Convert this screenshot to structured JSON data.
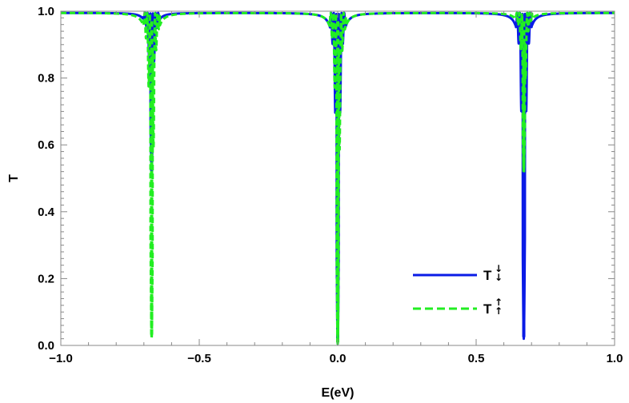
{
  "chart_data": {
    "type": "line",
    "title": "",
    "xlabel": "E(eV)",
    "ylabel": "T",
    "xlim": [
      -1.0,
      1.0
    ],
    "ylim": [
      0.0,
      1.0
    ],
    "xticks": [
      "-1.0",
      "-0.5",
      "0.0",
      "0.5",
      "1.0"
    ],
    "yticks": [
      "0.0",
      "0.2",
      "0.4",
      "0.6",
      "0.8",
      "1.0"
    ],
    "grid": false,
    "legend_position": "bottom-right",
    "series": [
      {
        "name": "T↓",
        "label_main": "T",
        "label_arrows": "↓↓",
        "color": "#0a1be6",
        "style": "solid",
        "resonances": [
          {
            "center": -0.672,
            "min": 0.52
          },
          {
            "center": 0.0,
            "min": 0.01
          },
          {
            "center": 0.672,
            "min": 0.025
          }
        ]
      },
      {
        "name": "T↑",
        "label_main": "T",
        "label_arrows": "↑↑",
        "color": "#22ee22",
        "style": "dashed",
        "resonances": [
          {
            "center": -0.672,
            "min": 0.025
          },
          {
            "center": 0.0,
            "min": 0.01
          },
          {
            "center": 0.672,
            "min": 0.52
          }
        ]
      }
    ]
  }
}
